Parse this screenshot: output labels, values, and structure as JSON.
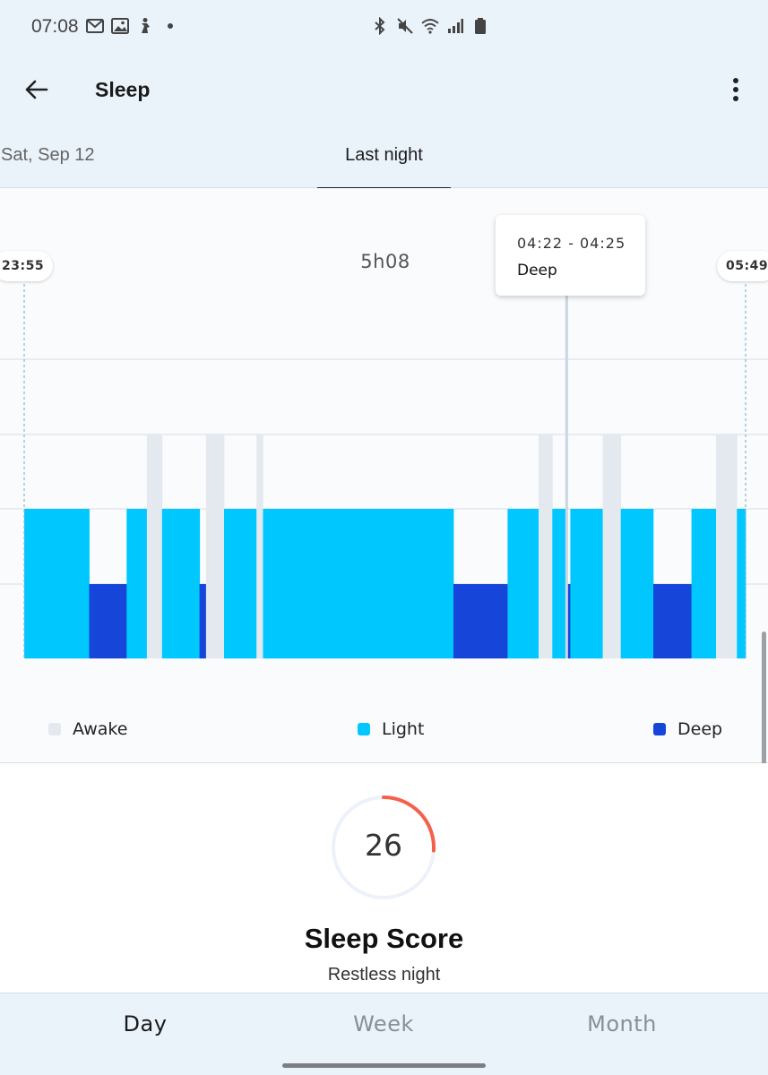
{
  "status_bar": {
    "time": "07:08",
    "left_icons": [
      "gmail-icon",
      "gallery-icon",
      "fitness-icon",
      "dot-icon"
    ],
    "right_icons": [
      "bluetooth-icon",
      "mute-icon",
      "wifi-icon",
      "signal-icon",
      "battery-icon"
    ]
  },
  "appbar": {
    "title": "Sleep",
    "back_icon": "arrow-left-icon",
    "menu_icon": "more-vert-icon"
  },
  "date_tabs": {
    "previous": "Sat, Sep 12",
    "current": "Last night"
  },
  "chart": {
    "start_time": "23:55",
    "end_time": "05:49",
    "duration": "5h08",
    "tooltip": {
      "range": "04:22 - 04:25",
      "stage": "Deep"
    },
    "legend": [
      {
        "label": "Awake",
        "color": "#e3e9ef"
      },
      {
        "label": "Light",
        "color": "#00c8ff"
      },
      {
        "label": "Deep",
        "color": "#1645da"
      }
    ]
  },
  "chart_data": {
    "type": "bar",
    "subtype": "sleep-stage-timeline",
    "x_start": "23:55",
    "x_end": "05:49",
    "duration": "5h08",
    "stage_levels": [
      "Deep",
      "Light",
      "Awake"
    ],
    "segments": [
      {
        "stage": "Light",
        "start": 0.0,
        "end": 0.09
      },
      {
        "stage": "Deep",
        "start": 0.09,
        "end": 0.142
      },
      {
        "stage": "Light",
        "start": 0.142,
        "end": 0.17
      },
      {
        "stage": "Awake",
        "start": 0.17,
        "end": 0.191
      },
      {
        "stage": "Light",
        "start": 0.191,
        "end": 0.243
      },
      {
        "stage": "Deep",
        "start": 0.243,
        "end": 0.252
      },
      {
        "stage": "Awake",
        "start": 0.252,
        "end": 0.277
      },
      {
        "stage": "Light",
        "start": 0.277,
        "end": 0.322
      },
      {
        "stage": "Awake",
        "start": 0.322,
        "end": 0.331
      },
      {
        "stage": "Light",
        "start": 0.331,
        "end": 0.595
      },
      {
        "stage": "Deep",
        "start": 0.595,
        "end": 0.67
      },
      {
        "stage": "Light",
        "start": 0.67,
        "end": 0.713
      },
      {
        "stage": "Awake",
        "start": 0.713,
        "end": 0.732
      },
      {
        "stage": "Light",
        "start": 0.732,
        "end": 0.752
      },
      {
        "stage": "Deep",
        "start": 0.752,
        "end": 0.757
      },
      {
        "stage": "Light",
        "start": 0.757,
        "end": 0.802
      },
      {
        "stage": "Awake",
        "start": 0.802,
        "end": 0.827
      },
      {
        "stage": "Light",
        "start": 0.827,
        "end": 0.872
      },
      {
        "stage": "Deep",
        "start": 0.872,
        "end": 0.925
      },
      {
        "stage": "Light",
        "start": 0.925,
        "end": 0.959
      },
      {
        "stage": "Awake",
        "start": 0.959,
        "end": 0.988
      },
      {
        "stage": "Light",
        "start": 0.988,
        "end": 1.0
      }
    ],
    "selected_segment_index": 14,
    "colors": {
      "Awake": "#e3e9ef",
      "Light": "#00c8ff",
      "Deep": "#1645da"
    }
  },
  "score": {
    "value": "26",
    "value_num": 26,
    "max": 100,
    "title": "Sleep Score",
    "subtitle": "Restless night",
    "arc_color": "#f4604c",
    "track_color": "#edf2f8"
  },
  "bottom_tabs": {
    "day": "Day",
    "week": "Week",
    "month": "Month",
    "selected": "Day"
  }
}
